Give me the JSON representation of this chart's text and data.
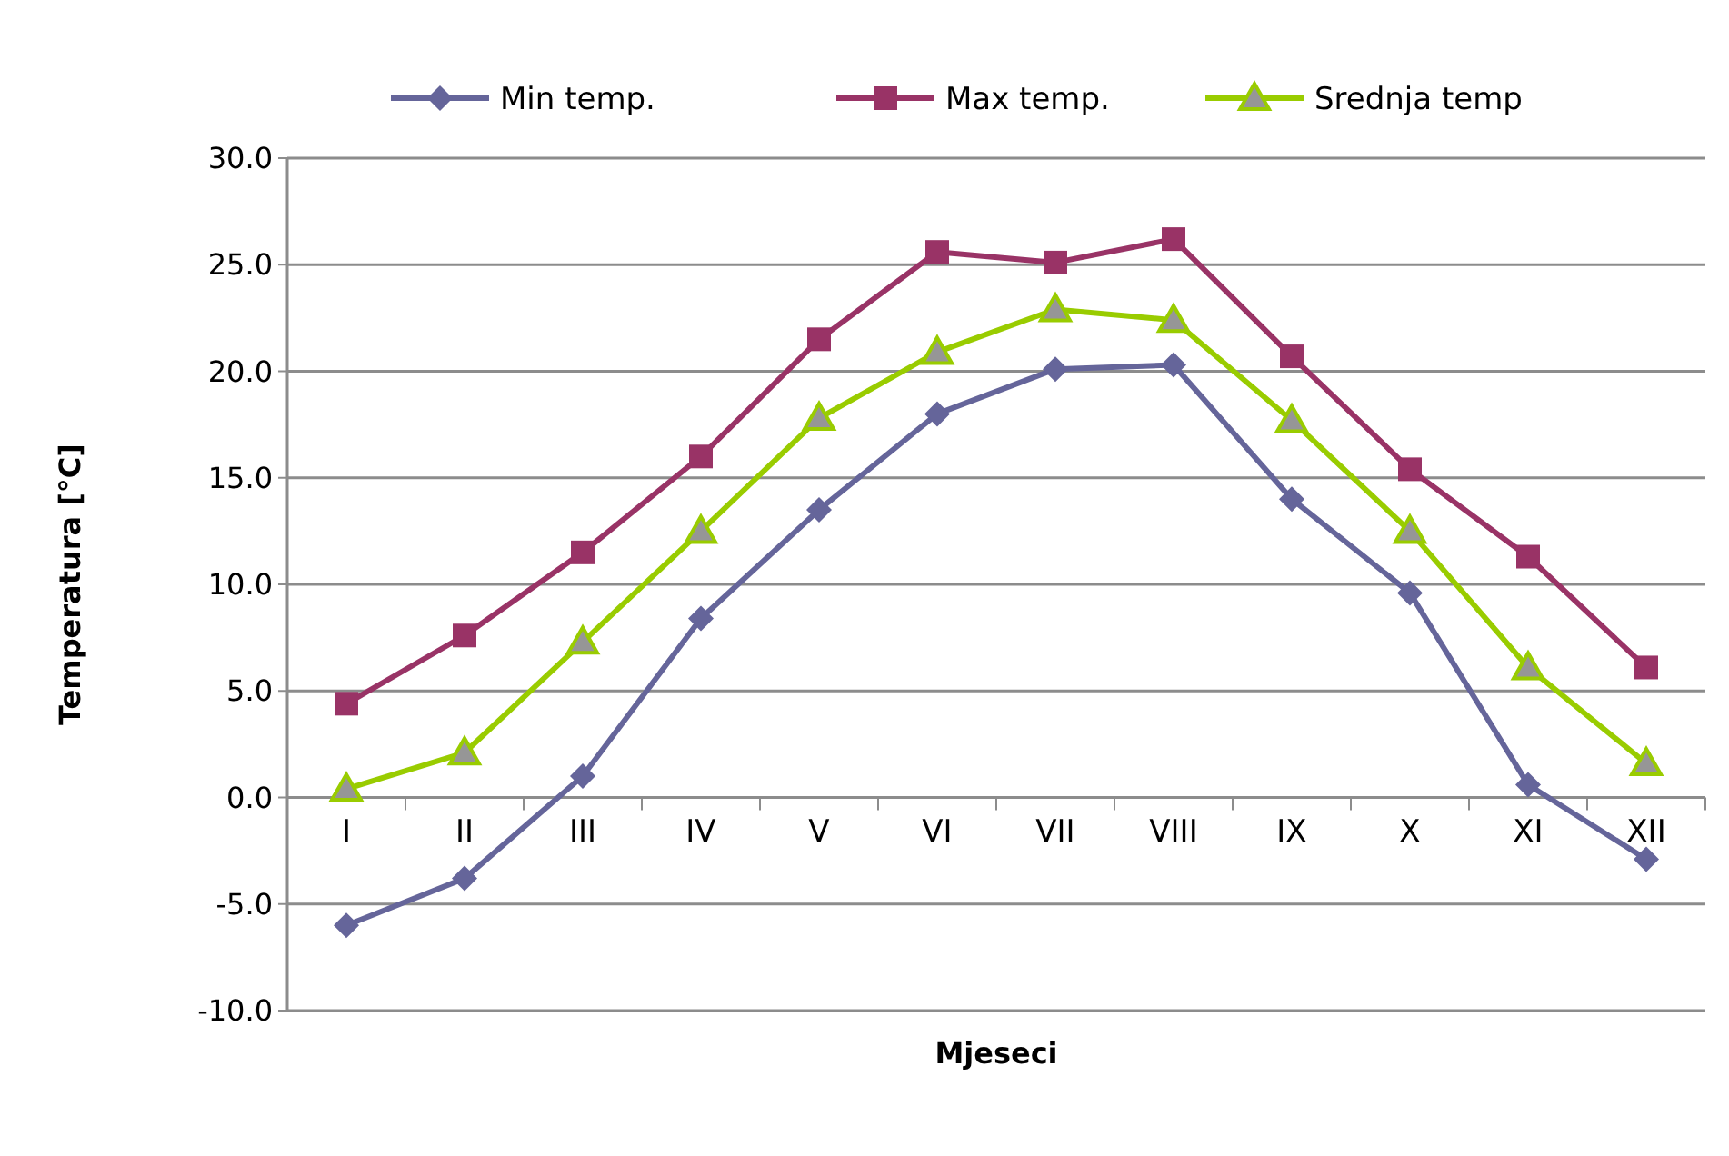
{
  "chart_data": {
    "type": "line",
    "xlabel": "Mjeseci",
    "ylabel": "Temperatura [°C]",
    "categories": [
      "I",
      "II",
      "III",
      "IV",
      "V",
      "VI",
      "VII",
      "VIII",
      "IX",
      "X",
      "XI",
      "XII"
    ],
    "series": [
      {
        "name": "Min temp.",
        "color": "#65659a",
        "marker": "diamond",
        "values": [
          -6.0,
          -3.8,
          1.0,
          8.4,
          13.5,
          18.0,
          20.1,
          20.3,
          14.0,
          9.6,
          0.6,
          -2.9
        ]
      },
      {
        "name": "Max temp.",
        "color": "#993366",
        "marker": "square",
        "values": [
          4.4,
          7.6,
          11.5,
          16.0,
          21.5,
          25.6,
          25.1,
          26.2,
          20.7,
          15.4,
          11.3,
          6.1
        ]
      },
      {
        "name": "Srednja temp",
        "color": "#99cc00",
        "marker": "triangle",
        "values": [
          0.4,
          2.1,
          7.3,
          12.5,
          17.8,
          20.9,
          22.9,
          22.4,
          17.7,
          12.5,
          6.1,
          1.6
        ]
      }
    ],
    "ylim": [
      -10,
      30
    ],
    "yticks": [
      {
        "value": -10,
        "label": "-10.0"
      },
      {
        "value": -5,
        "label": "-5.0"
      },
      {
        "value": 0,
        "label": "0.0"
      },
      {
        "value": 5,
        "label": "5.0"
      },
      {
        "value": 10,
        "label": "10.0"
      },
      {
        "value": 15,
        "label": "15.0"
      },
      {
        "value": 20,
        "label": "20.0"
      },
      {
        "value": 25,
        "label": "25.0"
      },
      {
        "value": 30,
        "label": "30.0"
      }
    ],
    "grid": "y",
    "legend": "top",
    "line_style": "solid"
  }
}
